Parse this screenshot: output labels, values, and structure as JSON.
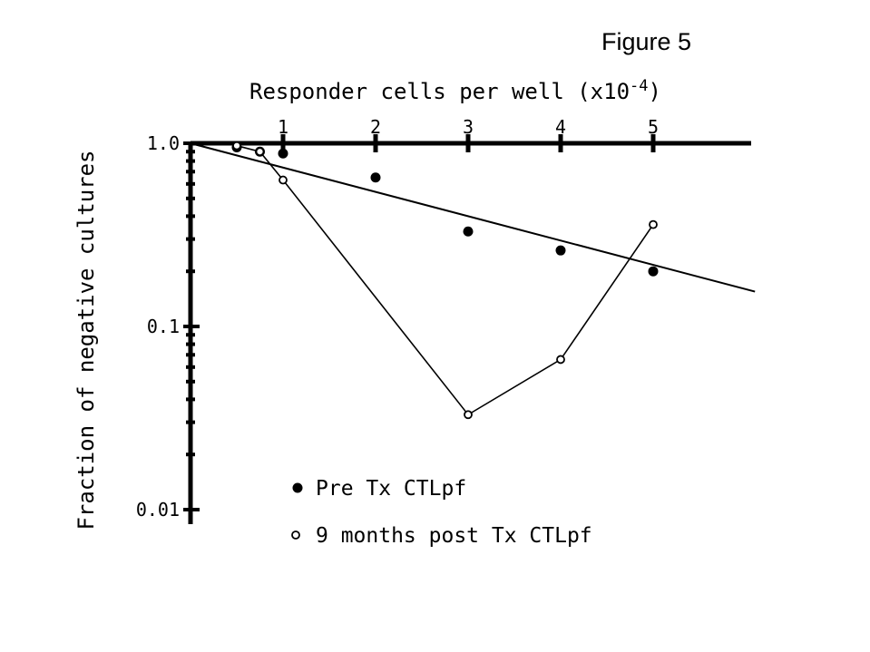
{
  "figure_label": "Figure 5",
  "chart_data": {
    "type": "scatter",
    "xlabel": "Responder cells per well (x10",
    "xlabel_exponent": "-4",
    "xlabel_close": ")",
    "ylabel": "Fraction of negative cultures",
    "y_scale": "log",
    "xlim": [
      0,
      6.1
    ],
    "ylim": [
      0.01,
      1.0
    ],
    "x_axis_position": "top",
    "x_ticks": [
      {
        "value": 1,
        "label": "1"
      },
      {
        "value": 2,
        "label": "2"
      },
      {
        "value": 3,
        "label": "3"
      },
      {
        "value": 4,
        "label": "4"
      },
      {
        "value": 5,
        "label": "5"
      }
    ],
    "y_ticks": [
      {
        "value": 1.0,
        "label": "1.0"
      },
      {
        "value": 0.1,
        "label": "0.1"
      },
      {
        "value": 0.01,
        "label": "0.01"
      }
    ],
    "grid": false,
    "legend_position": "bottom",
    "series": [
      {
        "name": "Pre Tx CTLpf",
        "marker": "filled-circle",
        "x": [
          0.5,
          0.75,
          1.0,
          2.0,
          3.0,
          4.0,
          5.0
        ],
        "y": [
          0.95,
          0.9,
          0.88,
          0.65,
          0.33,
          0.26,
          0.2
        ],
        "fit_line": {
          "x": [
            0,
            6.1
          ],
          "y": [
            1.0,
            0.155
          ]
        }
      },
      {
        "name": "9 months post Tx CTLpf",
        "marker": "open-circle",
        "connected": true,
        "x": [
          0.5,
          0.75,
          1.0,
          3.0,
          4.0,
          5.0
        ],
        "y": [
          0.97,
          0.9,
          0.63,
          0.033,
          0.066,
          0.36
        ]
      }
    ]
  }
}
